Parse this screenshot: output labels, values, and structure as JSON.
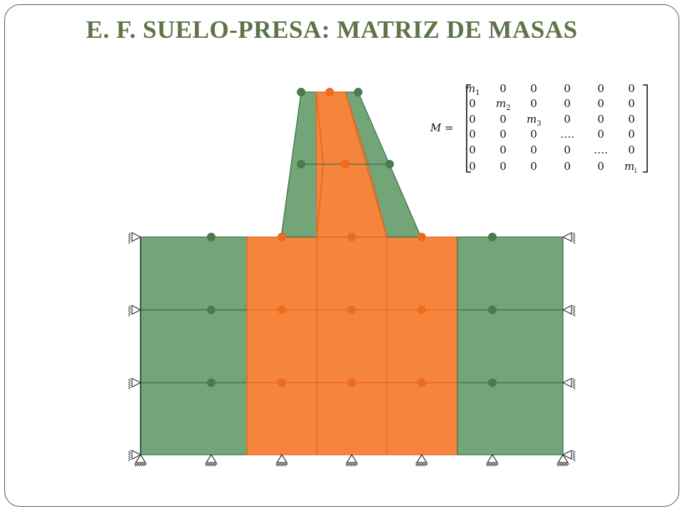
{
  "slide": {
    "title": "E. F. SUELO-PRESA: MATRIZ DE MASAS"
  },
  "colors": {
    "green_fill": "#72a578",
    "orange_fill": "#f5843c",
    "green_node": "#4c7a4f",
    "orange_node": "#ee6a1c",
    "orange_line": "#e8641c",
    "green_line": "#3f6e47",
    "title": "#5e7346"
  },
  "matrix": {
    "lhs": "M =",
    "rows": [
      [
        {
          "b": "m",
          "s": "1"
        },
        "0",
        "0",
        "0",
        "0",
        "0"
      ],
      [
        "0",
        {
          "b": "m",
          "s": "2"
        },
        "0",
        "0",
        "0",
        "0"
      ],
      [
        "0",
        "0",
        {
          "b": "m",
          "s": "3"
        },
        "0",
        "0",
        "0"
      ],
      [
        "0",
        "0",
        "0",
        "….",
        "0",
        "0"
      ],
      [
        "0",
        "0",
        "0",
        "0",
        "….",
        "0"
      ],
      [
        "0",
        "0",
        "0",
        "0",
        "0",
        {
          "b": "m",
          "s": "i"
        }
      ]
    ]
  },
  "mesh": {
    "description_nodes": "dam and foundation finite element mesh with mass nodes",
    "foundation_columns": [
      "soil",
      "soil-dam",
      "soil-dam",
      "soil-dam",
      "soil"
    ],
    "foundation_rows": 3,
    "dam_rows": 2
  }
}
